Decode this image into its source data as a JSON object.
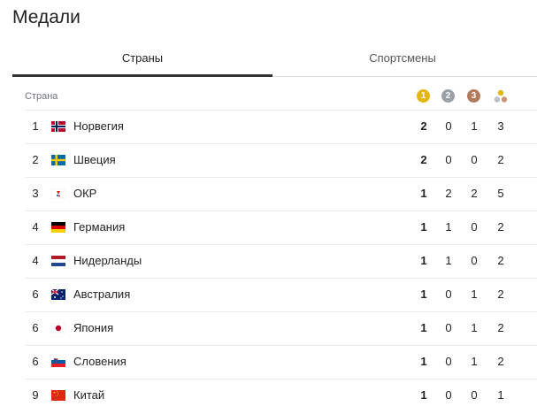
{
  "header": {
    "title": "Медали"
  },
  "tabs": [
    "Страны",
    "Спортсмены"
  ],
  "table": {
    "columns": {
      "country": "Страна",
      "gold": "1",
      "silver": "2",
      "bronze": "3"
    },
    "rows": [
      {
        "rank": 1,
        "country": "Норвегия",
        "gold": 2,
        "silver": 0,
        "bronze": 1,
        "total": 3
      },
      {
        "rank": 2,
        "country": "Швеция",
        "gold": 2,
        "silver": 0,
        "bronze": 0,
        "total": 2
      },
      {
        "rank": 3,
        "country": "ОКР",
        "gold": 1,
        "silver": 2,
        "bronze": 2,
        "total": 5
      },
      {
        "rank": 4,
        "country": "Германия",
        "gold": 1,
        "silver": 1,
        "bronze": 0,
        "total": 2
      },
      {
        "rank": 4,
        "country": "Нидерланды",
        "gold": 1,
        "silver": 1,
        "bronze": 0,
        "total": 2
      },
      {
        "rank": 6,
        "country": "Австралия",
        "gold": 1,
        "silver": 0,
        "bronze": 1,
        "total": 2
      },
      {
        "rank": 6,
        "country": "Япония",
        "gold": 1,
        "silver": 0,
        "bronze": 1,
        "total": 2
      },
      {
        "rank": 6,
        "country": "Словения",
        "gold": 1,
        "silver": 0,
        "bronze": 1,
        "total": 2
      },
      {
        "rank": 9,
        "country": "Китай",
        "gold": 1,
        "silver": 0,
        "bronze": 0,
        "total": 1
      }
    ]
  }
}
